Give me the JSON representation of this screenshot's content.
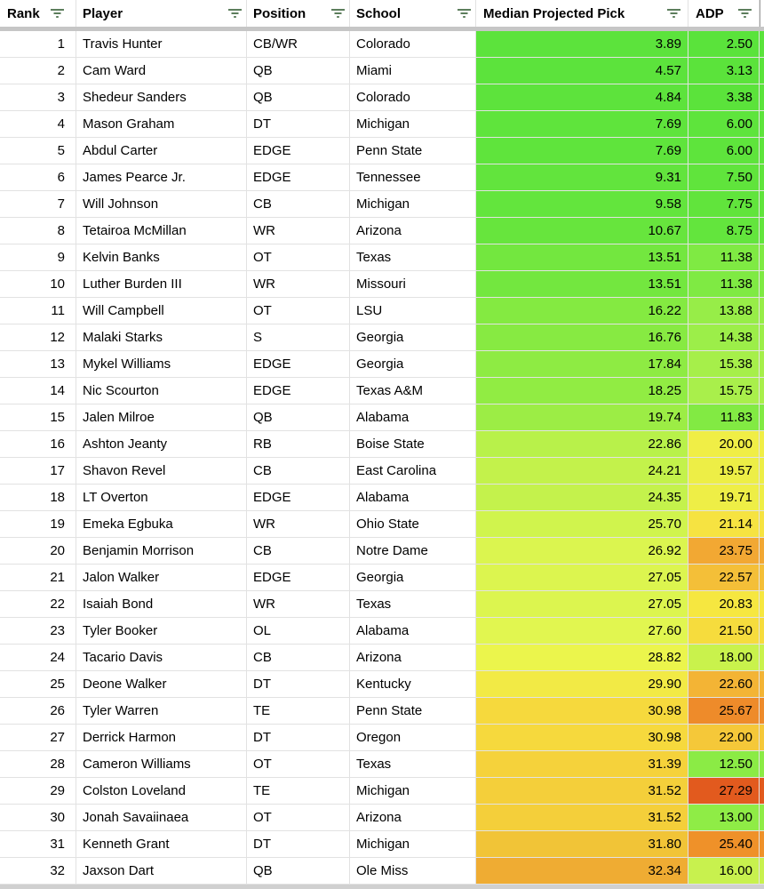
{
  "table": {
    "columns": [
      {
        "id": "rank",
        "label": "Rank"
      },
      {
        "id": "player",
        "label": "Player"
      },
      {
        "id": "position",
        "label": "Position"
      },
      {
        "id": "school",
        "label": "School"
      },
      {
        "id": "median",
        "label": "Median Projected Pick"
      },
      {
        "id": "adp",
        "label": "ADP"
      },
      {
        "id": "sliver",
        "label": ""
      }
    ],
    "rows": [
      {
        "rank": "1",
        "player": "Travis Hunter",
        "position": "CB/WR",
        "school": "Colorado",
        "median": "3.89",
        "adp": "2.50",
        "median_color": "#5CE33C",
        "adp_color": "#5AE33B"
      },
      {
        "rank": "2",
        "player": "Cam Ward",
        "position": "QB",
        "school": "Miami",
        "median": "4.57",
        "adp": "3.13",
        "median_color": "#5CE33C",
        "adp_color": "#5BE33B"
      },
      {
        "rank": "3",
        "player": "Shedeur Sanders",
        "position": "QB",
        "school": "Colorado",
        "median": "4.84",
        "adp": "3.38",
        "median_color": "#5DE33C",
        "adp_color": "#5BE33B"
      },
      {
        "rank": "4",
        "player": "Mason Graham",
        "position": "DT",
        "school": "Michigan",
        "median": "7.69",
        "adp": "6.00",
        "median_color": "#5FE43C",
        "adp_color": "#5EE43C"
      },
      {
        "rank": "5",
        "player": "Abdul Carter",
        "position": "EDGE",
        "school": "Penn State",
        "median": "7.69",
        "adp": "6.00",
        "median_color": "#5FE43C",
        "adp_color": "#5EE43C"
      },
      {
        "rank": "6",
        "player": "James Pearce Jr.",
        "position": "EDGE",
        "school": "Tennessee",
        "median": "9.31",
        "adp": "7.50",
        "median_color": "#62E43D",
        "adp_color": "#60E43C"
      },
      {
        "rank": "7",
        "player": "Will Johnson",
        "position": "CB",
        "school": "Michigan",
        "median": "9.58",
        "adp": "7.75",
        "median_color": "#63E53D",
        "adp_color": "#61E43C"
      },
      {
        "rank": "8",
        "player": "Tetairoa McMillan",
        "position": "WR",
        "school": "Arizona",
        "median": "10.67",
        "adp": "8.75",
        "median_color": "#67E53D",
        "adp_color": "#63E53D"
      },
      {
        "rank": "9",
        "player": "Kelvin Banks",
        "position": "OT",
        "school": "Texas",
        "median": "13.51",
        "adp": "11.38",
        "median_color": "#73E73F",
        "adp_color": "#7FEA43"
      },
      {
        "rank": "10",
        "player": "Luther Burden III",
        "position": "WR",
        "school": "Missouri",
        "median": "13.51",
        "adp": "11.38",
        "median_color": "#73E73F",
        "adp_color": "#7FEA43"
      },
      {
        "rank": "11",
        "player": "Will Campbell",
        "position": "OT",
        "school": "LSU",
        "median": "16.22",
        "adp": "13.88",
        "median_color": "#84EA41",
        "adp_color": "#97ED48"
      },
      {
        "rank": "12",
        "player": "Malaki Starks",
        "position": "S",
        "school": "Georgia",
        "median": "16.76",
        "adp": "14.38",
        "median_color": "#87EA42",
        "adp_color": "#9CEE49"
      },
      {
        "rank": "13",
        "player": "Mykel Williams",
        "position": "EDGE",
        "school": "Georgia",
        "median": "17.84",
        "adp": "15.38",
        "median_color": "#8EEB43",
        "adp_color": "#A6EF4A"
      },
      {
        "rank": "14",
        "player": "Nic Scourton",
        "position": "EDGE",
        "school": "Texas A&M",
        "median": "18.25",
        "adp": "15.75",
        "median_color": "#91EC43",
        "adp_color": "#A9EF4B"
      },
      {
        "rank": "15",
        "player": "Jalen Milroe",
        "position": "QB",
        "school": "Alabama",
        "median": "19.74",
        "adp": "11.83",
        "median_color": "#9CED45",
        "adp_color": "#82EA43"
      },
      {
        "rank": "16",
        "player": "Ashton Jeanty",
        "position": "RB",
        "school": "Boise State",
        "median": "22.86",
        "adp": "20.00",
        "median_color": "#B8F14A",
        "adp_color": "#F0EE46"
      },
      {
        "rank": "17",
        "player": "Shavon Revel",
        "position": "CB",
        "school": "East Carolina",
        "median": "24.21",
        "adp": "19.57",
        "median_color": "#C3F24B",
        "adp_color": "#EDEE46"
      },
      {
        "rank": "18",
        "player": "LT Overton",
        "position": "EDGE",
        "school": "Alabama",
        "median": "24.35",
        "adp": "19.71",
        "median_color": "#C4F24C",
        "adp_color": "#EEEE46"
      },
      {
        "rank": "19",
        "player": "Emeka Egbuka",
        "position": "WR",
        "school": "Ohio State",
        "median": "25.70",
        "adp": "21.14",
        "median_color": "#D0F44D",
        "adp_color": "#F6E341"
      },
      {
        "rank": "20",
        "player": "Benjamin Morrison",
        "position": "CB",
        "school": "Notre Dame",
        "median": "26.92",
        "adp": "23.75",
        "median_color": "#DBF54F",
        "adp_color": "#F2A833"
      },
      {
        "rank": "21",
        "player": "Jalon Walker",
        "position": "EDGE",
        "school": "Georgia",
        "median": "27.05",
        "adp": "22.57",
        "median_color": "#DCF54F",
        "adp_color": "#F4BF38"
      },
      {
        "rank": "22",
        "player": "Isaiah Bond",
        "position": "WR",
        "school": "Texas",
        "median": "27.05",
        "adp": "20.83",
        "median_color": "#DCF54F",
        "adp_color": "#F6E740"
      },
      {
        "rank": "23",
        "player": "Tyler Booker",
        "position": "OL",
        "school": "Alabama",
        "median": "27.60",
        "adp": "21.50",
        "median_color": "#E1F650",
        "adp_color": "#F6DC3D"
      },
      {
        "rank": "24",
        "player": "Tacario Davis",
        "position": "CB",
        "school": "Arizona",
        "median": "28.82",
        "adp": "18.00",
        "median_color": "#EBF54C",
        "adp_color": "#C9F24C"
      },
      {
        "rank": "25",
        "player": "Deone Walker",
        "position": "DT",
        "school": "Kentucky",
        "median": "29.90",
        "adp": "22.60",
        "median_color": "#F2EA45",
        "adp_color": "#F3B435"
      },
      {
        "rank": "26",
        "player": "Tyler Warren",
        "position": "TE",
        "school": "Penn State",
        "median": "30.98",
        "adp": "25.67",
        "median_color": "#F6D93D",
        "adp_color": "#EE8B2A"
      },
      {
        "rank": "27",
        "player": "Derrick Harmon",
        "position": "DT",
        "school": "Oregon",
        "median": "30.98",
        "adp": "22.00",
        "median_color": "#F6D93D",
        "adp_color": "#F5C839"
      },
      {
        "rank": "28",
        "player": "Cameron Williams",
        "position": "OT",
        "school": "Texas",
        "median": "31.39",
        "adp": "12.50",
        "median_color": "#F5D23B",
        "adp_color": "#8BEB45"
      },
      {
        "rank": "29",
        "player": "Colston Loveland",
        "position": "TE",
        "school": "Michigan",
        "median": "31.52",
        "adp": "27.29",
        "median_color": "#F4CF3A",
        "adp_color": "#E25A1E"
      },
      {
        "rank": "30",
        "player": "Jonah Savaiinaea",
        "position": "OT",
        "school": "Arizona",
        "median": "31.52",
        "adp": "13.00",
        "median_color": "#F4CF3A",
        "adp_color": "#8FEC46"
      },
      {
        "rank": "31",
        "player": "Kenneth Grant",
        "position": "DT",
        "school": "Michigan",
        "median": "31.80",
        "adp": "25.40",
        "median_color": "#F1C437",
        "adp_color": "#EF9129"
      },
      {
        "rank": "32",
        "player": "Jaxson Dart",
        "position": "QB",
        "school": "Ole Miss",
        "median": "32.34",
        "adp": "16.00",
        "median_color": "#EFAC33",
        "adp_color": "#C8F14E"
      }
    ]
  },
  "colors": {
    "gridline": "#e2e2e2",
    "header_divider": "#c6c6c6",
    "bottom_edge": "#d0d0d0",
    "filter_icon": "#5c7e5c",
    "text": "#000000",
    "green_low": "#5CE33C",
    "yellow_mid": "#F2EA45",
    "orange_high": "#EFAC33",
    "red_max": "#E25A1E"
  }
}
